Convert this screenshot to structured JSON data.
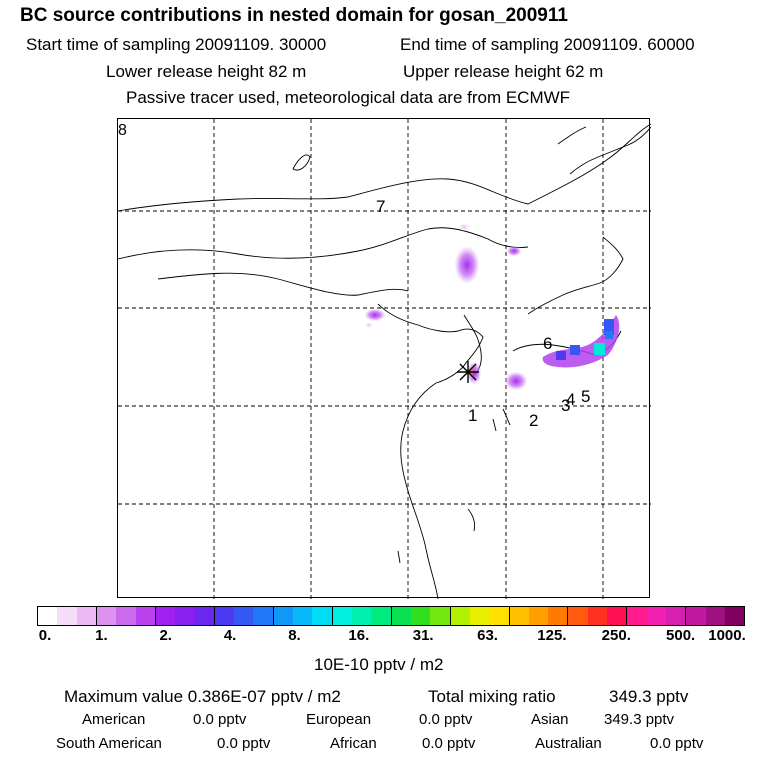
{
  "header": {
    "title": "BC  source contributions in nested domain for gosan_200911",
    "start_time": "Start time of sampling 20091109. 30000",
    "end_time": "End time of sampling 20091109. 60000",
    "lower_release": "Lower release height   82 m",
    "upper_release": "Upper release height   62 m",
    "tracer_note": "Passive tracer used, meteorological data are from ECMWF"
  },
  "map": {
    "corner_label": "8",
    "region_labels": [
      "7",
      "6",
      "1",
      "2",
      "3",
      "4",
      "5"
    ]
  },
  "colorbar": {
    "tick_labels": [
      "0.",
      "1.",
      "2.",
      "4.",
      "8.",
      "16.",
      "31.",
      "63.",
      "125.",
      "250.",
      "500.",
      "1000."
    ],
    "units": "10E-10 pptv / m2",
    "colors": [
      "#ffffff",
      "#f7dcf7",
      "#eab8f2",
      "#dc92ef",
      "#cc6aee",
      "#b942ee",
      "#a020ef",
      "#8a20f0",
      "#6b28f0",
      "#4d3af2",
      "#3358f4",
      "#1f78f6",
      "#1198f6",
      "#08b8f8",
      "#00dcf4",
      "#00f0e0",
      "#00f0b0",
      "#00ea80",
      "#08e050",
      "#30e020",
      "#70e810",
      "#b0f000",
      "#e8f000",
      "#ffe000",
      "#ffc000",
      "#ffa000",
      "#ff7a00",
      "#ff5a10",
      "#ff3020",
      "#ff1050",
      "#ff1a90",
      "#f020b0",
      "#d820b0",
      "#c018a0",
      "#a01080",
      "#800060"
    ]
  },
  "stats": {
    "maximum_label": "Maximum value  0.386E-07 pptv / m2",
    "total_label": "Total mixing ratio",
    "total_value": "349.3 pptv",
    "regions": [
      {
        "name": "American",
        "value": "0.0 pptv"
      },
      {
        "name": "European",
        "value": "0.0 pptv"
      },
      {
        "name": "Asian",
        "value": "349.3 pptv"
      },
      {
        "name": "South American",
        "value": "0.0 pptv"
      },
      {
        "name": "African",
        "value": "0.0 pptv"
      },
      {
        "name": "Australian",
        "value": "0.0 pptv"
      }
    ]
  }
}
